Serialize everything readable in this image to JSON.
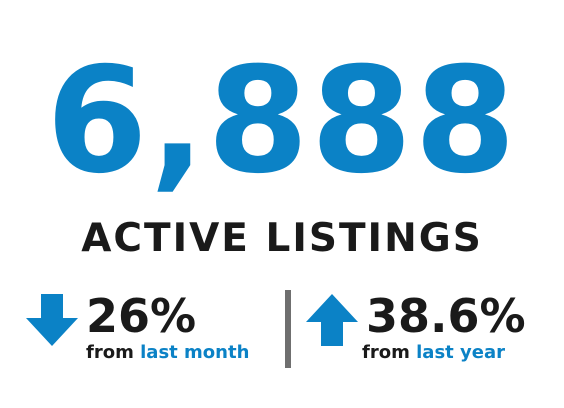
{
  "headline": {
    "value": "6,888",
    "label": "ACTIVE LISTINGS"
  },
  "stats": [
    {
      "direction": "down",
      "icon": "arrow-down-icon",
      "percent": "26%",
      "prefix": "from",
      "period": "last month"
    },
    {
      "direction": "up",
      "icon": "arrow-up-icon",
      "percent": "38.6%",
      "prefix": "from",
      "period": "last year"
    }
  ],
  "colors": {
    "accent": "#0b82c6",
    "text": "#1a1a1a",
    "divider": "#6f6f6f"
  }
}
